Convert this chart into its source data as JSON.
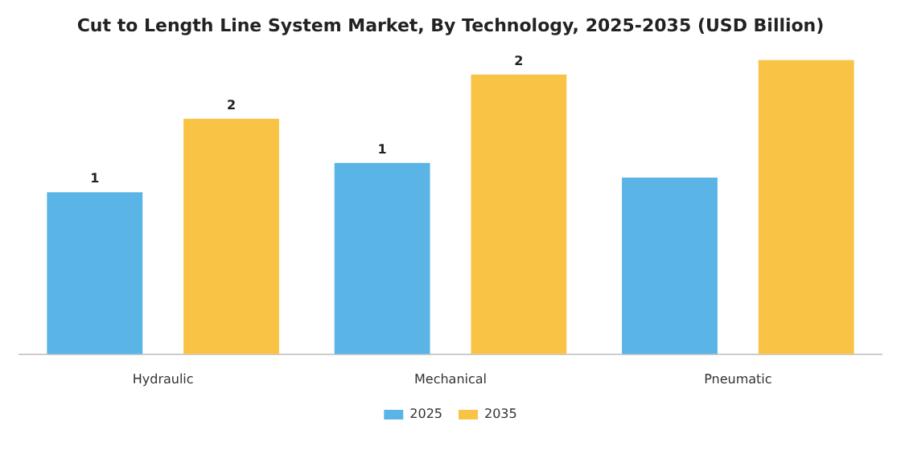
{
  "chart_data": {
    "type": "bar",
    "title": "Cut to Length Line System Market, By Technology, 2025-2035 (USD Billion)",
    "categories": [
      "Hydraulic",
      "Mechanical",
      "Pneumatic"
    ],
    "tick_labels": "x",
    "legend": "bottom",
    "series": [
      {
        "name": "2025",
        "color": "#5ab4e5",
        "values": [
          1.1,
          1.3,
          1.2
        ],
        "value_labels": [
          "1",
          "1",
          null
        ]
      },
      {
        "name": "2035",
        "color": "#f9c446",
        "values": [
          1.6,
          1.9,
          2.0
        ],
        "value_labels": [
          "2",
          "2",
          null
        ]
      }
    ]
  }
}
